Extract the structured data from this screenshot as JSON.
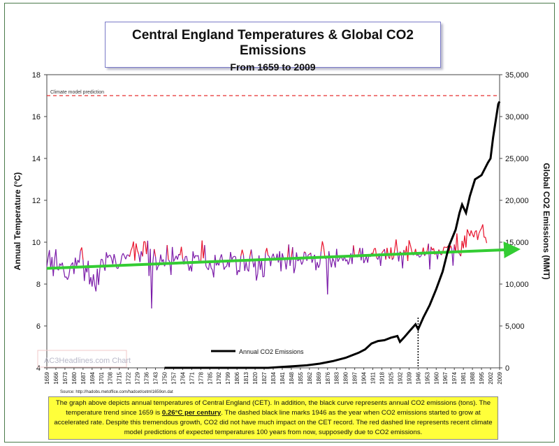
{
  "title": "Central England Temperatures & Global CO2 Emissions",
  "subtitle": "From 1659 to 2009",
  "y_left_label": "Annual Temperature (°C)",
  "y_right_label": "Global CO2 Emissions (MMT)",
  "prediction_label": "Climate model prediction",
  "legend_label": "Annual CO2 Emissions",
  "watermark": "AC3Headlines.com Chart",
  "source": "Source: http://hadobs.metoffice.com/hadcet/cetml1659on.dat",
  "caption": {
    "part1": "The graph above depicts annual temperatures of Central England (CET). In addition, the black curve represents annual CO2 emissions (tons). The temperature trend since 1659 is ",
    "trend": "0.26°C per century",
    "part2": ". The dashed black line marks 1946 as the year when CO2 emissions started to grow at accelerated rate. Despite this tremendous growth, CO2 did not have much impact on the CET record. The red dashed line represents recent climate model predictions of expected temperatures 100 years from now, supposedly due to CO2 emissions."
  },
  "colors": {
    "temp_warm": "#e8102a",
    "temp_cool": "#7a1aa8",
    "co2": "#000000",
    "trend": "#33cc33",
    "prediction": "#e83030",
    "frame": "#4a7a4a"
  },
  "chart_data": {
    "type": "line",
    "x_range": [
      1659,
      2009
    ],
    "x_ticks": [
      1659,
      1666,
      1673,
      1680,
      1687,
      1694,
      1701,
      1708,
      1715,
      1722,
      1729,
      1736,
      1743,
      1750,
      1757,
      1764,
      1771,
      1778,
      1785,
      1792,
      1799,
      1806,
      1813,
      1820,
      1827,
      1834,
      1841,
      1848,
      1855,
      1862,
      1869,
      1876,
      1883,
      1890,
      1897,
      1904,
      1911,
      1918,
      1925,
      1932,
      1939,
      1946,
      1953,
      1960,
      1967,
      1974,
      1981,
      1988,
      1995,
      2002,
      2009
    ],
    "y_left": {
      "min": 4,
      "max": 18,
      "ticks": [
        4,
        6,
        8,
        10,
        12,
        14,
        16,
        18
      ]
    },
    "y_right": {
      "min": 0,
      "max": 35000,
      "ticks": [
        0,
        5000,
        10000,
        15000,
        20000,
        25000,
        30000,
        35000
      ],
      "tick_labels": [
        "0",
        "5,000",
        "10,000",
        "15,000",
        "20,000",
        "25,000",
        "30,000",
        "35,000"
      ]
    },
    "prediction_temp": 17,
    "marker_year": 1946,
    "trend": {
      "start": [
        1659,
        8.75
      ],
      "end": [
        2009,
        9.65
      ]
    },
    "co2": {
      "name": "Annual CO2 Emissions",
      "points": [
        [
          1750,
          0
        ],
        [
          1800,
          0
        ],
        [
          1830,
          0
        ],
        [
          1850,
          200
        ],
        [
          1860,
          300
        ],
        [
          1870,
          500
        ],
        [
          1880,
          800
        ],
        [
          1890,
          1200
        ],
        [
          1900,
          1800
        ],
        [
          1905,
          2200
        ],
        [
          1910,
          2900
        ],
        [
          1915,
          3200
        ],
        [
          1920,
          3300
        ],
        [
          1925,
          3600
        ],
        [
          1930,
          3800
        ],
        [
          1932,
          3100
        ],
        [
          1935,
          3600
        ],
        [
          1940,
          4500
        ],
        [
          1944,
          5200
        ],
        [
          1946,
          4600
        ],
        [
          1950,
          6000
        ],
        [
          1955,
          7500
        ],
        [
          1960,
          9400
        ],
        [
          1965,
          11500
        ],
        [
          1970,
          14600
        ],
        [
          1975,
          16500
        ],
        [
          1978,
          18500
        ],
        [
          1980,
          19500
        ],
        [
          1983,
          18500
        ],
        [
          1986,
          20500
        ],
        [
          1990,
          22500
        ],
        [
          1995,
          23000
        ],
        [
          2000,
          24500
        ],
        [
          2002,
          25000
        ],
        [
          2004,
          27500
        ],
        [
          2006,
          29500
        ],
        [
          2008,
          31500
        ],
        [
          2009,
          31800
        ]
      ]
    },
    "temperature": {
      "name": "Central England Temperature",
      "start_year": 1659,
      "values": [
        8.83,
        9.25,
        9.62,
        8.74,
        9.29,
        8.38,
        9.18,
        9.66,
        8.75,
        8.66,
        8.98,
        8.88,
        9.02,
        8.67,
        8.32,
        8.35,
        8.21,
        8.38,
        8.79,
        8.94,
        9.03,
        8.48,
        9.26,
        8.87,
        9.15,
        9.02,
        9.59,
        9.75,
        9.16,
        8.15,
        8.81,
        8.56,
        9.11,
        7.99,
        8.33,
        7.88,
        8.47,
        7.95,
        7.65,
        8.73,
        7.96,
        8.72,
        9.19,
        9.17,
        8.87,
        8.64,
        9.52,
        9.25,
        9.37,
        9.38,
        9.22,
        8.95,
        9.43,
        9.16,
        8.77,
        8.74,
        8.92,
        8.98,
        9.35,
        9.47,
        9.33,
        9.19,
        9.39,
        9.39,
        9.31,
        9.59,
        9.75,
        10.03,
        9.12,
        9.94,
        9.61,
        9.43,
        9.05,
        9.57,
        9.32,
        10.03,
        10.02,
        9.43,
        10.07,
        8.39,
        9.68,
        6.84,
        9.07,
        9.67,
        9.32,
        8.66,
        8.85,
        8.92,
        9.41,
        9.06,
        9.18,
        8.85,
        9.03,
        9.86,
        9.16,
        9.07,
        8.44,
        9.77,
        9.08,
        9.2,
        9.35,
        9.17,
        9.43,
        9.38,
        9.78,
        9.22,
        8.94,
        9.31,
        9.33,
        9.0,
        8.64,
        8.89,
        8.6,
        9.56,
        9.23,
        9.37,
        9.33,
        9.37,
        9.02,
        9.07,
        10.08,
        9.23,
        9.86,
        8.86,
        8.75,
        8.68,
        9.13,
        8.77,
        8.68,
        8.32,
        9.39,
        8.89,
        9.02,
        8.89,
        9.24,
        9.42,
        9.09,
        8.69,
        8.82,
        8.84,
        9.12,
        8.8,
        9.53,
        9.17,
        9.29,
        9.33,
        9.3,
        8.43,
        8.66,
        8.58,
        9.34,
        9.64,
        9.39,
        8.63,
        9.06,
        8.71,
        8.6,
        9.33,
        9.65,
        9.17,
        8.8,
        9.08,
        8.17,
        8.49,
        9.37,
        8.68,
        9.14,
        8.34,
        8.36,
        9.48,
        9.72,
        9.37,
        9.31,
        8.86,
        9.3,
        9.45,
        9.2,
        9.13,
        9.45,
        9.03,
        9.57,
        8.61,
        9.47,
        9.22,
        9.17,
        8.7,
        9.2,
        9.89,
        8.87,
        9.27,
        9.76,
        8.52,
        8.8,
        9.51,
        9.1,
        9.17,
        9.18,
        8.93,
        9.07,
        9.54,
        9.5,
        9.11,
        9.39,
        9.42,
        9.49,
        9.02,
        9.22,
        9.4,
        8.66,
        9.05,
        8.78,
        8.94,
        9.56,
        10.04,
        9.76,
        9.24,
        9.21,
        7.51,
        9.57,
        9.15,
        8.8,
        9.23,
        9.09,
        8.79,
        9.68,
        9.07,
        9.19,
        9.28,
        9.25,
        9.11,
        9.35,
        9.09,
        9.17,
        8.93,
        9.13,
        9.47,
        8.96,
        9.85,
        9.34,
        9.38,
        9.28,
        9.44,
        9.73,
        9.13,
        9.72,
        9.0,
        9.15,
        9.33,
        9.02,
        9.4,
        9.3,
        9.48,
        9.44,
        9.68,
        9.71,
        9.25,
        9.17,
        9.46,
        8.87,
        9.49,
        9.57,
        9.67,
        9.17,
        9.73,
        9.32,
        9.21,
        9.75,
        9.16,
        9.25,
        9.68,
        10.13,
        9.57,
        9.08,
        9.55,
        9.46,
        8.75,
        9.63,
        9.37,
        9.82,
        9.1,
        10.09,
        9.87,
        9.59,
        9.39,
        9.41,
        9.68,
        9.35,
        9.44,
        9.28,
        9.32,
        9.45,
        9.74,
        9.35,
        9.47,
        9.59,
        9.93,
        8.7,
        9.78,
        9.62,
        9.71,
        9.41,
        9.54,
        9.18,
        9.65,
        9.46,
        9.39,
        9.52,
        9.77,
        9.76,
        9.74,
        9.81,
        9.56,
        9.84,
        9.71,
        8.88,
        9.89,
        9.51,
        10.42,
        9.53,
        9.44,
        9.33,
        10.06,
        9.71,
        10.32,
        9.75,
        10.61,
        10.45,
        10.29,
        10.56,
        10.38,
        10.24,
        10.5,
        10.56,
        10.11,
        10.41,
        10.56,
        10.67,
        10.85,
        10.23,
        10.24,
        9.96
      ]
    }
  }
}
